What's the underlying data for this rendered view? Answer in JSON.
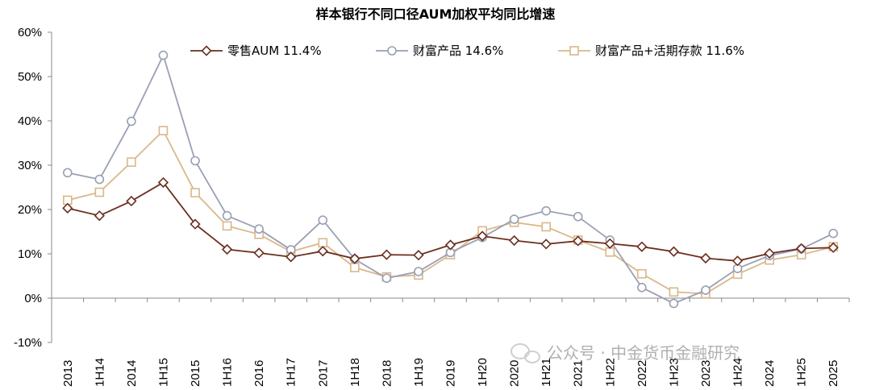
{
  "chart_data": {
    "type": "line",
    "title": "样本银行不同口径AUM加权平均同比增速",
    "categories": [
      "2013",
      "1H14",
      "2014",
      "1H15",
      "2015",
      "1H16",
      "2016",
      "1H17",
      "2017",
      "1H18",
      "2018",
      "1H19",
      "2019",
      "1H20",
      "2020",
      "1H21",
      "2021",
      "1H22",
      "2022",
      "1H23",
      "2023",
      "1H24",
      "2024",
      "1H25",
      "2025"
    ],
    "ylim": [
      -10,
      60
    ],
    "yticks": [
      "-10%",
      "0%",
      "10%",
      "20%",
      "30%",
      "40%",
      "50%",
      "60%"
    ],
    "ytick_values": [
      -10,
      0,
      10,
      20,
      30,
      40,
      50,
      60
    ],
    "grid": false,
    "legend_position": "top",
    "series": [
      {
        "name": "零售AUM 11.4%",
        "color": "#6b2e1f",
        "marker": "diamond",
        "values": [
          20.3,
          18.6,
          21.9,
          26.1,
          16.7,
          11.0,
          10.2,
          9.3,
          10.6,
          8.9,
          9.8,
          9.7,
          12.0,
          14.0,
          13.0,
          12.2,
          12.9,
          12.3,
          11.6,
          10.5,
          9.0,
          8.4,
          10.1,
          11.2,
          11.4
        ]
      },
      {
        "name": "财富产品 14.6%",
        "color": "#9a9fb5",
        "marker": "circle",
        "values": [
          28.3,
          26.8,
          39.9,
          54.8,
          31.0,
          18.6,
          15.6,
          10.9,
          17.6,
          8.8,
          4.5,
          6.0,
          10.3,
          13.7,
          17.8,
          19.7,
          18.4,
          13.1,
          2.4,
          -1.2,
          1.8,
          6.7,
          9.6,
          11.1,
          14.6
        ]
      },
      {
        "name": "财富产品+活期存款 11.6%",
        "color": "#d9b889",
        "marker": "square",
        "values": [
          22.1,
          23.9,
          30.7,
          37.8,
          23.8,
          16.3,
          14.4,
          10.5,
          12.5,
          6.9,
          4.8,
          5.2,
          9.8,
          15.2,
          17.1,
          16.1,
          13.1,
          10.4,
          5.5,
          1.4,
          1.0,
          5.4,
          8.6,
          9.8,
          11.6
        ]
      }
    ]
  },
  "watermark": {
    "text": "公众号 · 中金货币金融研究",
    "icon": "wechat-icon"
  }
}
